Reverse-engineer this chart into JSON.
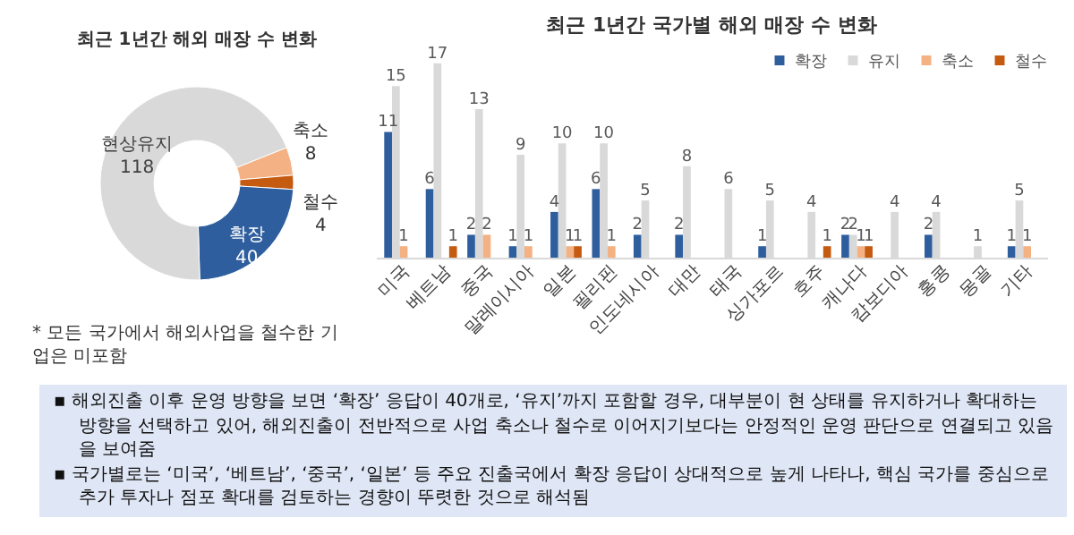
{
  "chart_data": [
    {
      "type": "donut",
      "title": "최근 1년간 해외 매장 수 변화",
      "categories": [
        "축소",
        "철수",
        "확장",
        "현상유지"
      ],
      "values": [
        8,
        4,
        40,
        118
      ],
      "colors": [
        "#f4b183",
        "#c55a11",
        "#2e5e9e",
        "#d9d9d9"
      ],
      "data_labels": true,
      "legend": false,
      "annotations": [
        "* 모든 국가에서 해외사업을 철수한 기업은 미포함"
      ]
    },
    {
      "type": "bar",
      "title": "최근 1년간 국가별 해외 매장 수 변화",
      "categories": [
        "미국",
        "베트남",
        "중국",
        "말레이시아",
        "일본",
        "필리핀",
        "인도네시아",
        "대만",
        "태국",
        "싱가포르",
        "호주",
        "캐나다",
        "캄보디아",
        "홍콩",
        "몽골",
        "기타"
      ],
      "data_labels": true,
      "legend": "top right",
      "series": [
        {
          "name": "확장",
          "color": "#2e5e9e",
          "values": [
            11,
            6,
            2,
            1,
            4,
            6,
            2,
            2,
            null,
            1,
            null,
            2,
            null,
            2,
            null,
            1
          ]
        },
        {
          "name": "유지",
          "color": "#d9d9d9",
          "values": [
            15,
            17,
            13,
            9,
            10,
            10,
            5,
            8,
            6,
            5,
            4,
            2,
            4,
            4,
            1,
            5
          ]
        },
        {
          "name": "축소",
          "color": "#f4b183",
          "values": [
            1,
            null,
            2,
            1,
            1,
            1,
            null,
            null,
            null,
            null,
            null,
            1,
            null,
            null,
            null,
            1
          ]
        },
        {
          "name": "철수",
          "color": "#c55a11",
          "values": [
            null,
            1,
            null,
            null,
            1,
            null,
            null,
            null,
            null,
            null,
            1,
            1,
            null,
            null,
            null,
            null
          ]
        }
      ],
      "annotations": [
        "▪ 해외진출 이후 운영 방향을 보면 ‘확장’ 응답이 40개로, ‘유지’까지 포함할 경우, 대부분이 현 상태를 유지하거나 확대하는 방향을 선택하고 있어, 해외진출이 전반적으로 사업 축소나 철수로 이어지기보다는 안정적인 운영 판단으로 연결되고 있음을 보여줌",
        "▪ 국가별로는 ‘미국’, ‘베트남’, ‘중국’, ‘일본’ 등 주요 진출국에서 확장 응답이 상대적으로 높게 나타나, 핵심 국가를 중심으로 추가 투자나 점포 확대를 검토하는 경향이 뚜렷한 것으로 해석됨"
      ]
    }
  ]
}
